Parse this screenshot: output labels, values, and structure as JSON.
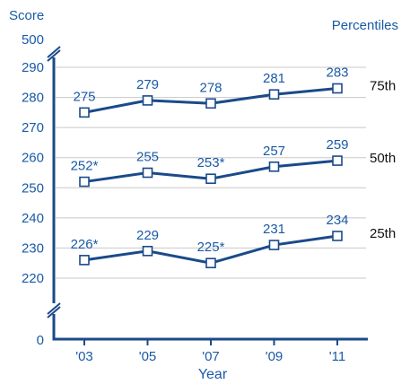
{
  "chart_data": {
    "type": "line",
    "title": "",
    "ylabel": "Score",
    "xlabel": "Year",
    "legend_title": "Percentiles",
    "categories": [
      "'03",
      "'05",
      "'07",
      "'09",
      "'11"
    ],
    "ylim": [
      220,
      290
    ],
    "y_ticks": [
      "290",
      "280",
      "270",
      "260",
      "250",
      "240",
      "230",
      "220"
    ],
    "y_top_label": "500",
    "y_zero_label": "0",
    "axis_break": true,
    "grid": true,
    "series": [
      {
        "name": "75th",
        "values": [
          275,
          279,
          278,
          281,
          283
        ],
        "labels": [
          "275",
          "279",
          "278",
          "281",
          "283"
        ]
      },
      {
        "name": "50th",
        "values": [
          252,
          255,
          253,
          257,
          259
        ],
        "labels": [
          "252*",
          "255",
          "253*",
          "257",
          "259"
        ]
      },
      {
        "name": "25th",
        "values": [
          226,
          229,
          225,
          231,
          234
        ],
        "labels": [
          "226*",
          "229",
          "225*",
          "231",
          "234"
        ]
      }
    ],
    "colors": {
      "line": "#1a4a8a",
      "text": "#1a5aa6",
      "grid": "#c8c8c8"
    }
  }
}
